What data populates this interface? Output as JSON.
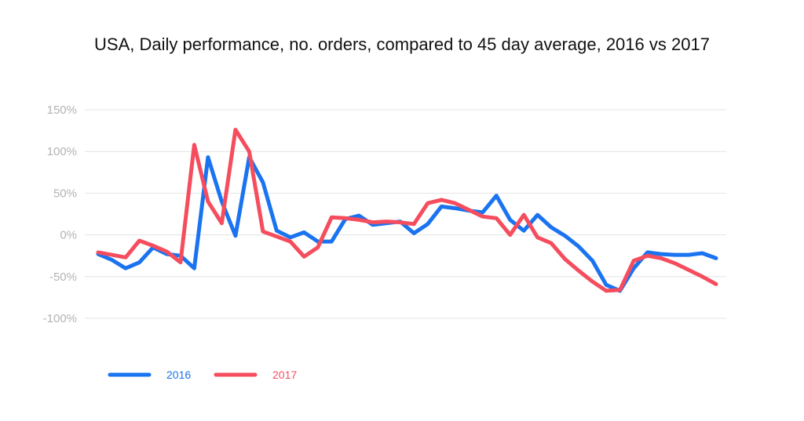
{
  "chart_data": {
    "type": "line",
    "title": "USA, Daily performance, no. orders, compared to 45 day average, 2016 vs 2017",
    "ylim": [
      -100,
      150
    ],
    "y_ticks": [
      "150%",
      "100%",
      "50%",
      "0%",
      "-50%",
      "-100%"
    ],
    "grid": true,
    "legend_placement": "bottom-left",
    "series": [
      {
        "name": "2016",
        "color": "#1a73f0",
        "x": [
          0,
          1,
          2,
          3,
          4,
          5,
          6,
          7,
          8,
          9,
          10,
          11,
          12,
          13,
          14,
          15,
          16,
          17,
          18,
          19,
          20,
          21,
          22,
          23,
          24,
          25,
          26,
          27,
          28,
          29,
          30,
          31,
          32,
          33,
          34,
          35,
          36,
          37,
          38,
          39,
          40,
          41,
          42,
          43,
          44,
          45
        ],
        "values": [
          -23,
          -30,
          -40,
          -33,
          -15,
          -23,
          -25,
          -40,
          93,
          40,
          -1,
          93,
          63,
          5,
          -3,
          3,
          -8,
          -8,
          19,
          23,
          12,
          14,
          16,
          2,
          13,
          34,
          32,
          29,
          27,
          47,
          18,
          5,
          24,
          9,
          -1,
          -14,
          -31,
          -60,
          -67,
          -40,
          -21,
          -23,
          -24,
          -24,
          -22,
          -28
        ]
      },
      {
        "name": "2017",
        "color": "#f54d5e",
        "x": [
          0,
          1,
          2,
          3,
          4,
          5,
          6,
          7,
          8,
          9,
          10,
          11,
          12,
          13,
          14,
          15,
          16,
          17,
          18,
          19,
          20,
          21,
          22,
          23,
          24,
          25,
          26,
          27,
          28,
          29,
          30,
          31,
          32,
          33,
          34,
          35,
          36,
          37,
          38,
          39,
          40,
          41,
          42,
          43,
          44,
          45
        ],
        "values": [
          -21,
          -24,
          -27,
          -7,
          -13,
          -20,
          -33,
          108,
          40,
          14,
          126,
          100,
          4,
          -2,
          -8,
          -26,
          -15,
          21,
          20,
          18,
          15,
          16,
          15,
          13,
          38,
          42,
          38,
          30,
          22,
          20,
          0,
          24,
          -3,
          -10,
          -29,
          -43,
          -56,
          -67,
          -66,
          -31,
          -25,
          -28,
          -34,
          -42,
          -50,
          -59
        ]
      }
    ]
  }
}
